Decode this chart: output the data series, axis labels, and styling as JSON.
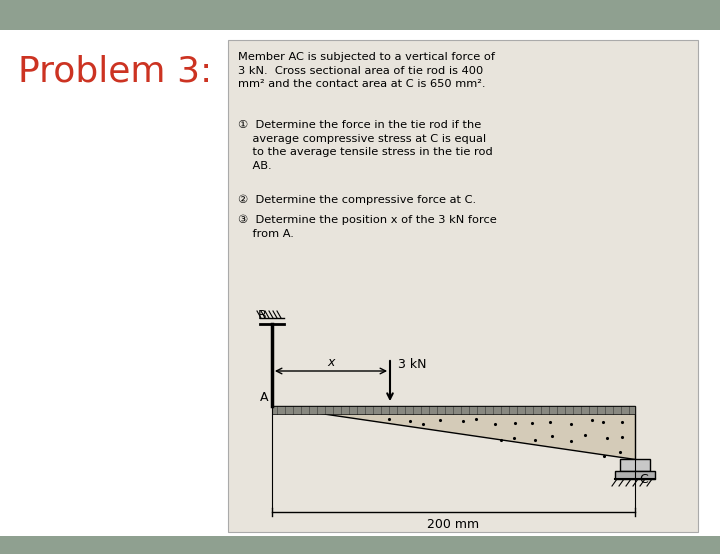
{
  "title": "Problem 3:",
  "title_color": "#cc3322",
  "title_fontsize": 26,
  "bg_outer": "#8fa090",
  "bg_white": "#ffffff",
  "card_bg": "#e8e4dc",
  "text_block": "Member AC is subjected to a vertical force of\n3 kN.  Cross sectional area of tie rod is 400\nmm² and the contact area at C is 650 mm².",
  "item1": "①  Determine the force in the tie rod if the\n    average compressive stress at C is equal\n    to the average tensile stress in the tie rod\n    AB.",
  "item2": "②  Determine the compressive force at C.",
  "item3": "③  Determine the position x of the 3 kN force\n    from A.",
  "label_3kN": "3 kN",
  "label_x": "x",
  "label_200mm": "200 mm",
  "label_A": "A",
  "label_B": "B",
  "label_C": "C"
}
